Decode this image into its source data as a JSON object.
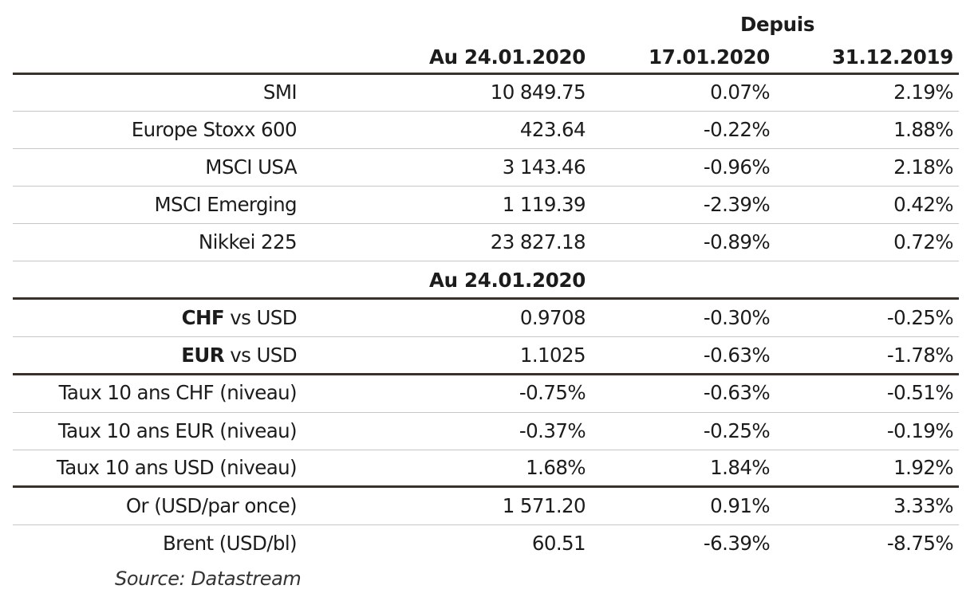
{
  "header": {
    "group_label": "Depuis",
    "col1": "Au 24.01.2020",
    "col2": "17.01.2020",
    "col3": "31.12.2019"
  },
  "rows": [
    {
      "label": "SMI",
      "v1": "10 849.75",
      "v2": "0.07%",
      "v3": "2.19%"
    },
    {
      "label": "Europe Stoxx 600",
      "v1": "423.64",
      "v2": "-0.22%",
      "v3": "1.88%"
    },
    {
      "label": "MSCI USA",
      "v1": "3 143.46",
      "v2": "-0.96%",
      "v3": "2.18%"
    },
    {
      "label": "MSCI Emerging",
      "v1": "1 119.39",
      "v2": "-2.39%",
      "v3": "0.42%"
    },
    {
      "label": "Nikkei 225",
      "v1": "23 827.18",
      "v2": "-0.89%",
      "v3": "0.72%"
    },
    {
      "label": "",
      "v1": "Au 24.01.2020",
      "v2": "",
      "v3": ""
    },
    {
      "label_bold": "CHF",
      "label_rest": " vs USD",
      "v1": "0.9708",
      "v2": "-0.30%",
      "v3": "-0.25%"
    },
    {
      "label_bold": "EUR",
      "label_rest": " vs USD",
      "v1": "1.1025",
      "v2": "-0.63%",
      "v3": "-1.78%"
    },
    {
      "label": "Taux 10 ans CHF (niveau)",
      "v1": "-0.75%",
      "v2": "-0.63%",
      "v3": "-0.51%"
    },
    {
      "label": "Taux 10 ans EUR (niveau)",
      "v1": "-0.37%",
      "v2": "-0.25%",
      "v3": "-0.19%"
    },
    {
      "label": "Taux 10 ans USD (niveau)",
      "v1": "1.68%",
      "v2": "1.84%",
      "v3": "1.92%"
    },
    {
      "label": "Or (USD/par once)",
      "v1": "1 571.20",
      "v2": "0.91%",
      "v3": "3.33%"
    },
    {
      "label": "Brent (USD/bl)",
      "v1": "60.51",
      "v2": "-6.39%",
      "v3": "-8.75%"
    }
  ],
  "footer": {
    "source": "Source: Datastream"
  }
}
